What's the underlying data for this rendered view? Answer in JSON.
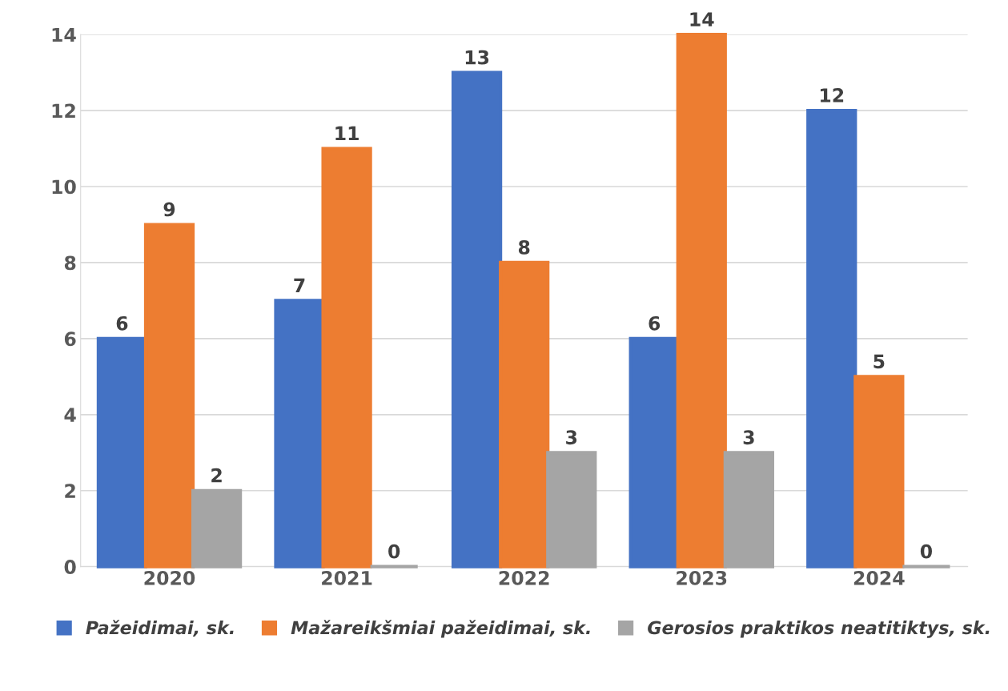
{
  "chart_data": {
    "type": "bar",
    "categories": [
      "2020",
      "2021",
      "2022",
      "2023",
      "2024"
    ],
    "series": [
      {
        "name": "Pažeidimai, sk.",
        "color": "#4472c4",
        "values": [
          6,
          7,
          13,
          6,
          12
        ]
      },
      {
        "name": "Mažareikšmiai pažeidimai, sk.",
        "color": "#ed7d31",
        "values": [
          9,
          11,
          8,
          14,
          5
        ]
      },
      {
        "name": "Gerosios praktikos neatitiktys, sk.",
        "color": "#a5a5a5",
        "values": [
          2,
          0,
          3,
          3,
          0
        ]
      }
    ],
    "ylim": [
      0,
      14
    ],
    "yticks": [
      0,
      2,
      4,
      6,
      8,
      10,
      12,
      14
    ],
    "grid": "y",
    "legend": "bottom",
    "data_labels": true
  }
}
